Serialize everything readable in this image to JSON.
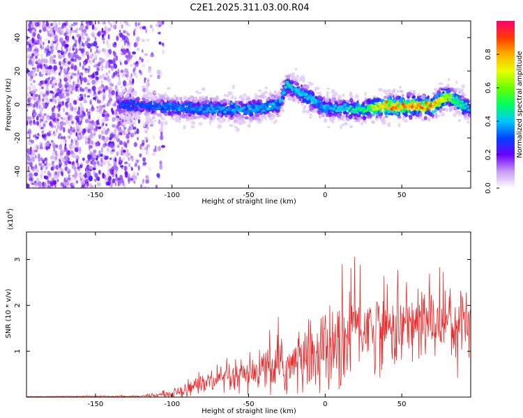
{
  "title": "C2E1.2025.311.03.00.R04",
  "chart_data": [
    {
      "type": "heatmap",
      "xlabel": "Height of straight line (km)",
      "ylabel": "Frequency (Hz)",
      "xlim": [
        -195,
        95
      ],
      "ylim": [
        -50,
        50
      ],
      "xticks": [
        -150,
        -100,
        -50,
        0,
        50
      ],
      "yticks": [
        -40,
        -20,
        0,
        20,
        40
      ],
      "colorbar": {
        "label": "Normalized spectral amplitude",
        "range": [
          0.0,
          1.0
        ],
        "ticks": [
          0.0,
          0.2,
          0.4,
          0.6,
          0.8
        ],
        "tick_labels": [
          "0.0",
          "0.2",
          "0.4",
          "0.6",
          "0.8"
        ]
      },
      "ridge": {
        "description_points_x": [
          -130,
          -100,
          -50,
          -30,
          -25,
          0,
          25,
          40,
          70,
          80,
          95
        ],
        "center_freq_hz": [
          0,
          -2,
          -3,
          0,
          12,
          -2,
          -3,
          -1,
          -1,
          5,
          -3
        ],
        "peak_amplitude": [
          0.3,
          0.35,
          0.4,
          0.4,
          0.45,
          0.4,
          0.5,
          0.85,
          0.85,
          0.65,
          0.4
        ]
      }
    },
    {
      "type": "line",
      "series_name": "SNR",
      "color": "#ee2a2a",
      "xlabel": "Height of straight line (km)",
      "ylabel": "SNR (10 * v/v)",
      "y_multiplier_label": "(x10",
      "y_multiplier_exp": "4",
      "y_multiplier_close": ")",
      "xlim": [
        -195,
        95
      ],
      "ylim": [
        0,
        3.6
      ],
      "xticks": [
        -150,
        -100,
        -50,
        0,
        50
      ],
      "yticks": [
        1,
        2,
        3
      ],
      "envelope_x": [
        -195,
        -120,
        -110,
        -100,
        -90,
        -80,
        -70,
        -60,
        -50,
        -40,
        -30,
        -20,
        -10,
        0,
        10,
        20,
        30,
        40,
        50,
        60,
        70,
        80,
        90,
        95
      ],
      "envelope_mean": [
        0.01,
        0.02,
        0.04,
        0.07,
        0.2,
        0.3,
        0.35,
        0.4,
        0.45,
        0.6,
        0.65,
        0.7,
        0.9,
        1.0,
        1.05,
        1.6,
        1.5,
        1.5,
        1.55,
        1.6,
        1.65,
        1.7,
        1.6,
        1.55
      ],
      "envelope_spread": [
        0.005,
        0.02,
        0.05,
        0.08,
        0.2,
        0.25,
        0.3,
        0.35,
        0.4,
        0.5,
        0.6,
        0.7,
        0.8,
        0.9,
        1.0,
        1.1,
        0.9,
        0.8,
        0.9,
        0.9,
        0.8,
        0.9,
        0.9,
        0.9
      ]
    }
  ]
}
